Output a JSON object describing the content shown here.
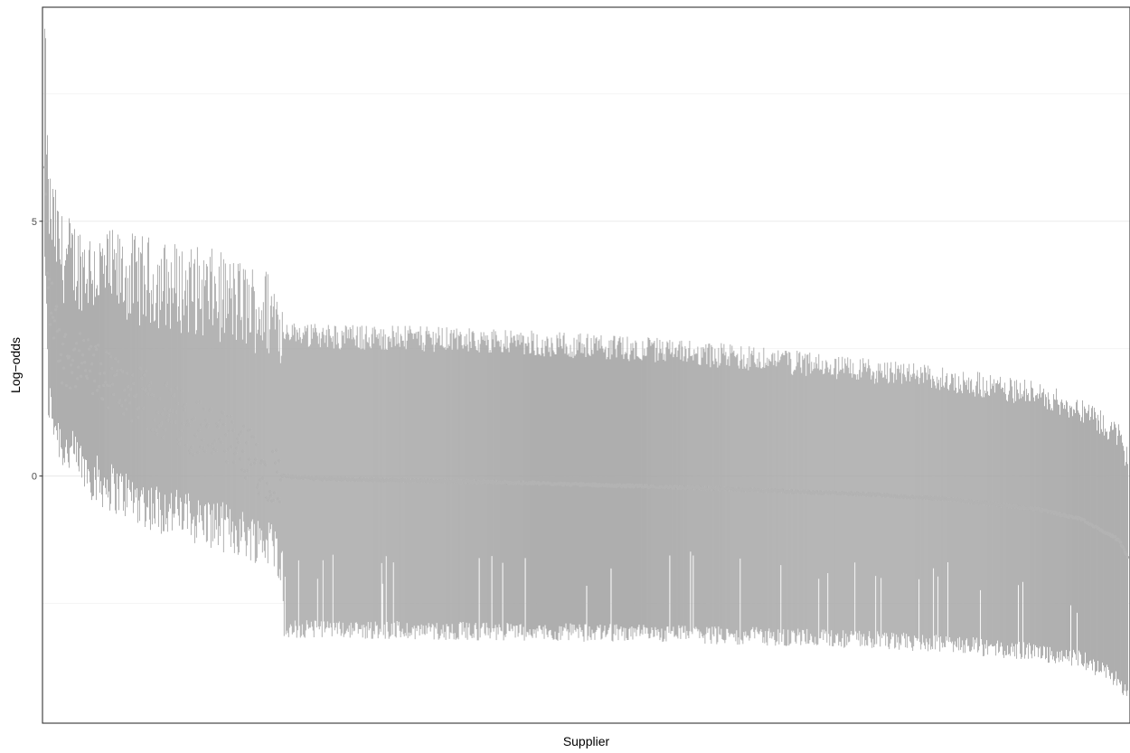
{
  "chart_data": {
    "type": "errorbar",
    "xlabel": "Supplier",
    "ylabel": "Log−odds",
    "ylim": [
      -4.85,
      9.2
    ],
    "y_ticks": [
      0,
      5
    ],
    "y_tick_labels": [
      "0",
      "5"
    ],
    "y_minor_gridlines": [
      -2.5,
      2.5,
      7.5
    ],
    "x_ticks": [],
    "grid": "horizontal",
    "legend": "none",
    "n_suppliers": 1200,
    "ordering": "descending by estimate",
    "colors": {
      "bar": "#a6a6a6",
      "point": "#b3b3b3",
      "grid_major": "#ebebeb",
      "grid_minor": "#f2f2f2",
      "panel_border": "#333333"
    },
    "profile": {
      "description_points": "estimate, lower and upper bound at supplier rank",
      "rank": [
        1,
        5,
        20,
        60,
        120,
        180,
        250,
        264,
        266,
        300,
        500,
        700,
        900,
        1000,
        1100,
        1150,
        1190,
        1200
      ],
      "estimate": [
        5.9,
        3.6,
        2.4,
        2.0,
        1.4,
        0.9,
        0.1,
        0.0,
        0.0,
        -0.05,
        -0.12,
        -0.22,
        -0.35,
        -0.45,
        -0.65,
        -0.85,
        -1.25,
        -1.6
      ],
      "lower": [
        4.5,
        1.5,
        0.6,
        -0.1,
        -0.6,
        -0.9,
        -1.3,
        -1.6,
        -3.0,
        -3.0,
        -3.05,
        -3.1,
        -3.2,
        -3.3,
        -3.45,
        -3.6,
        -4.0,
        -4.3
      ],
      "upper": [
        8.5,
        5.3,
        4.3,
        4.0,
        3.8,
        3.6,
        3.2,
        3.1,
        2.8,
        2.75,
        2.65,
        2.45,
        2.1,
        1.9,
        1.6,
        1.3,
        0.8,
        0.3
      ]
    }
  }
}
